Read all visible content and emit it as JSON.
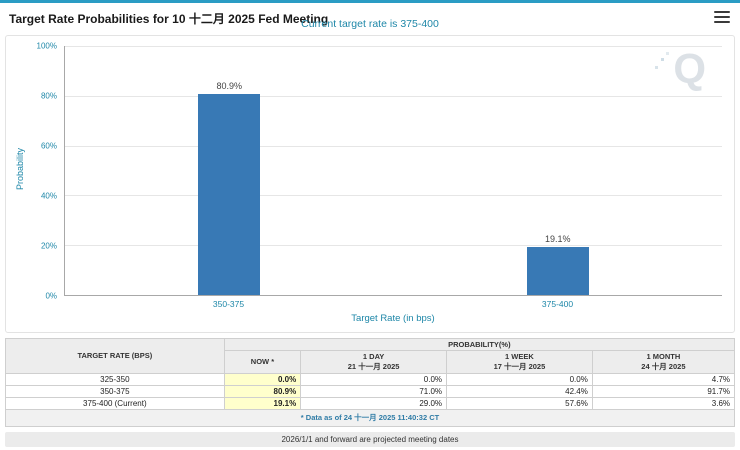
{
  "colors": {
    "accent_teal": "#1E87A8",
    "bar_blue": "#3879B5",
    "highlight_yellow": "#FFFFCC",
    "top_accent": "#2A9CC4",
    "watermark_gray": "#DCE1E6"
  },
  "header": {
    "title": "Target Rate Probabilities for 10 十二月 2025 Fed Meeting"
  },
  "chart": {
    "subtitle": "Current target rate is 375-400",
    "ylabel": "Probability",
    "xlabel": "Target Rate (in bps)",
    "watermark": "Q"
  },
  "chart_data": {
    "type": "bar",
    "title": "Target Rate Probabilities for 10 十二月 2025 Fed Meeting",
    "categories": [
      "350-375",
      "375-400"
    ],
    "values": [
      80.9,
      19.1
    ],
    "labels": [
      "80.9%",
      "19.1%"
    ],
    "xlabel": "Target Rate (in bps)",
    "ylabel": "Probability",
    "ylim": [
      0,
      100
    ],
    "yticks": [
      "100%",
      "80%",
      "60%",
      "40%",
      "20%",
      "0%"
    ],
    "grid": true,
    "legend_position": "none"
  },
  "table": {
    "col1_header": "TARGET RATE (BPS)",
    "prob_header": "PROBABILITY(%)",
    "sub_headers": [
      {
        "line1": "NOW *",
        "line2": ""
      },
      {
        "line1": "1 DAY",
        "line2": "21 十一月 2025"
      },
      {
        "line1": "1 WEEK",
        "line2": "17 十一月 2025"
      },
      {
        "line1": "1 MONTH",
        "line2": "24 十月 2025"
      }
    ],
    "rows": [
      {
        "target": "325-350",
        "now": "0.0%",
        "day": "0.0%",
        "week": "0.0%",
        "month": "4.7%"
      },
      {
        "target": "350-375",
        "now": "80.9%",
        "day": "71.0%",
        "week": "42.4%",
        "month": "91.7%"
      },
      {
        "target": "375-400 (Current)",
        "now": "19.1%",
        "day": "29.0%",
        "week": "57.6%",
        "month": "3.6%"
      }
    ],
    "footnote": "* Data as of 24 十一月 2025 11:40:32 CT"
  },
  "footer": {
    "note": "2026/1/1 and forward are projected meeting dates"
  }
}
